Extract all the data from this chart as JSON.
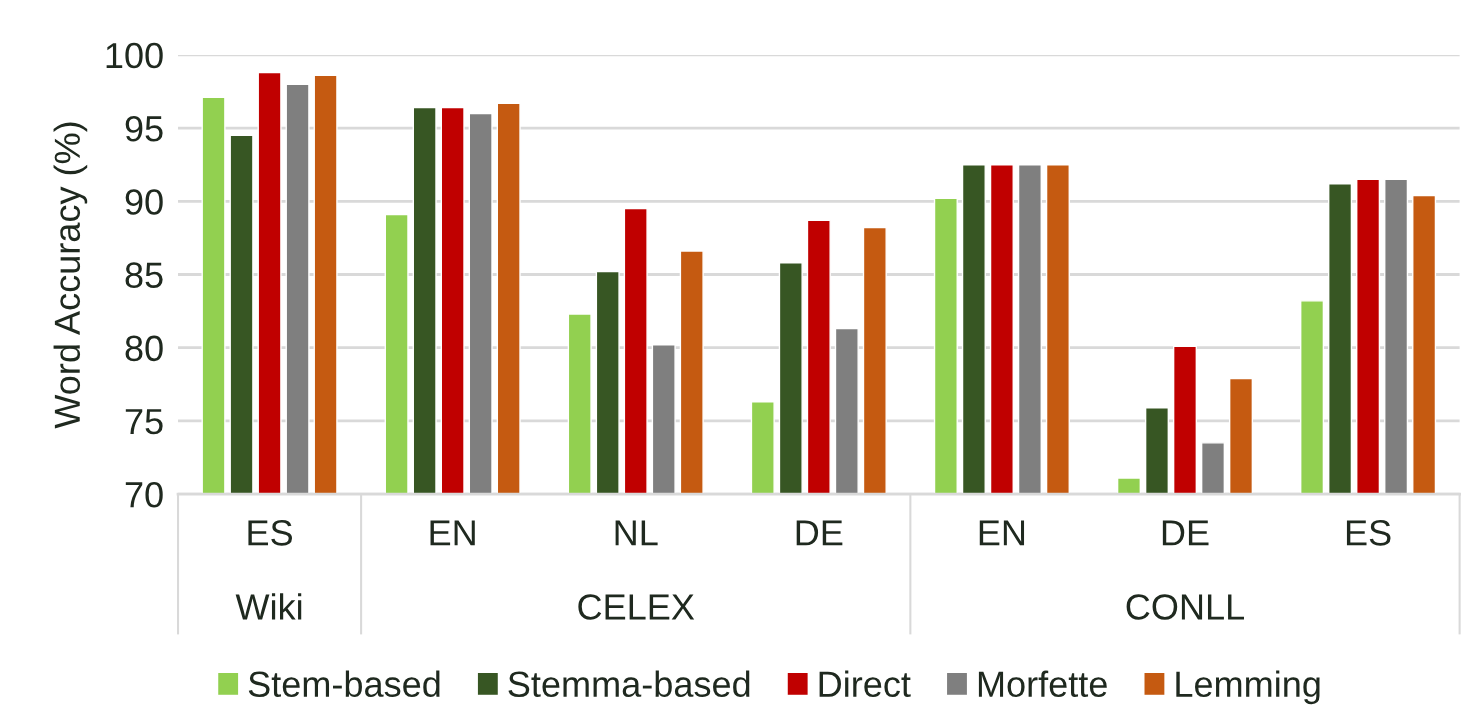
{
  "chart_data": {
    "type": "bar",
    "ylabel": "Word Accuracy (%)",
    "categories": [
      "ES",
      "EN",
      "NL",
      "DE",
      "EN",
      "DE",
      "ES"
    ],
    "series": [
      {
        "name": "Stem-based",
        "color": "#92d050",
        "values": [
          97.1,
          89.1,
          82.3,
          76.3,
          90.2,
          71.1,
          83.2
        ]
      },
      {
        "name": "Stemma-based",
        "color": "#375623",
        "values": [
          94.5,
          96.4,
          85.2,
          85.8,
          92.5,
          75.9,
          91.2
        ]
      },
      {
        "name": "Direct",
        "color": "#c00000",
        "values": [
          98.8,
          96.4,
          89.5,
          88.7,
          92.5,
          80.1,
          91.5
        ]
      },
      {
        "name": "Morfette",
        "color": "#7f7f7f",
        "values": [
          98.0,
          96.0,
          80.2,
          81.3,
          92.5,
          73.5,
          91.5
        ]
      },
      {
        "name": "Lemming",
        "color": "#c55a11",
        "values": [
          98.6,
          96.7,
          86.6,
          88.2,
          92.5,
          77.9,
          90.4
        ]
      }
    ],
    "ylim": [
      70,
      100
    ],
    "yticks": [
      70,
      75,
      80,
      85,
      90,
      95,
      100
    ],
    "grid": "y",
    "legend": "bottom",
    "annotations": [
      "Wiki",
      "CELEX",
      "CONLL"
    ]
  }
}
